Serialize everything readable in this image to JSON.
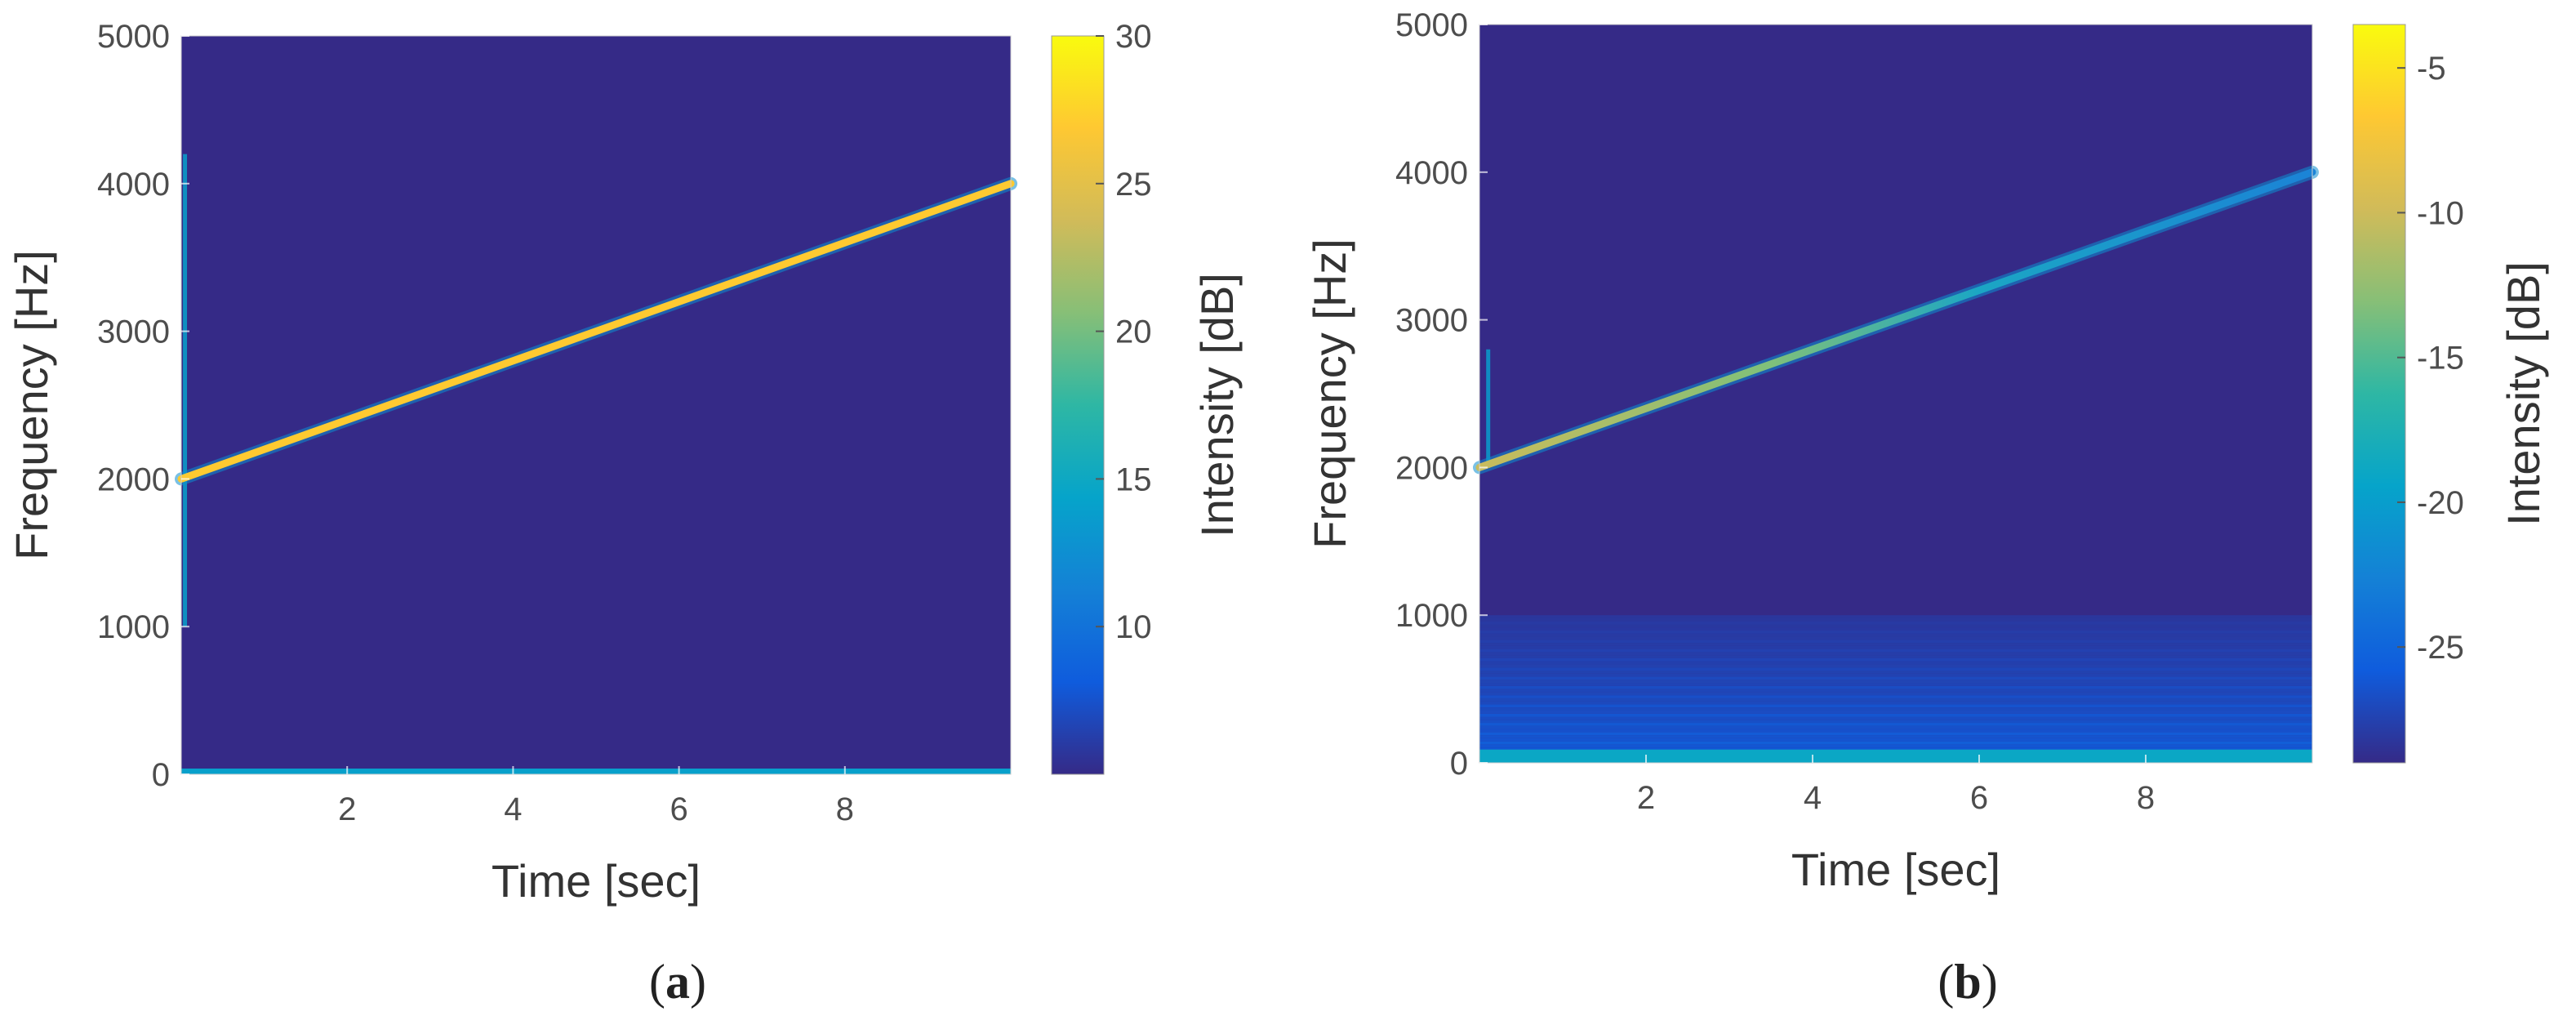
{
  "chart_data": [
    {
      "type": "heatmap",
      "panel_label": "a",
      "xlabel": "Time [sec]",
      "ylabel": "Frequency [Hz]",
      "colorbar_label": "Intensity [dB]",
      "xlim": [
        0,
        10
      ],
      "ylim": [
        0,
        5000
      ],
      "xticks": [
        2,
        4,
        6,
        8
      ],
      "yticks": [
        0,
        1000,
        2000,
        3000,
        4000,
        5000
      ],
      "clim": [
        5,
        30
      ],
      "colorbar_ticks": [
        10,
        15,
        20,
        25,
        30
      ],
      "background_level_db": 5,
      "features": {
        "chirp": {
          "t": [
            0,
            10
          ],
          "freq": [
            2000,
            4000
          ],
          "level_db": 27
        },
        "dc_line": {
          "freq": 0,
          "level_db": 14
        },
        "onset_transient": {
          "t": 0.04,
          "freq_range": [
            1000,
            4200
          ],
          "level_db": 14
        }
      }
    },
    {
      "type": "heatmap",
      "panel_label": "b",
      "xlabel": "Time [sec]",
      "ylabel": "Frequency [Hz]",
      "colorbar_label": "Intensity [dB]",
      "xlim": [
        0,
        10
      ],
      "ylim": [
        0,
        5000
      ],
      "xticks": [
        2,
        4,
        6,
        8
      ],
      "yticks": [
        0,
        1000,
        2000,
        3000,
        4000,
        5000
      ],
      "clim": [
        -29,
        -3.5
      ],
      "colorbar_ticks": [
        -25,
        -20,
        -15,
        -10,
        -5
      ],
      "background_level_db": -28.5,
      "features": {
        "chirp": {
          "t": [
            0,
            10
          ],
          "freq": [
            2000,
            4000
          ],
          "level_db_start": -8,
          "level_db_end": -20
        },
        "low_freq_noise": {
          "freq_range": [
            0,
            1000
          ],
          "level_db": -25
        },
        "onset_transient": {
          "t": 0.1,
          "freq_range": [
            2000,
            2800
          ],
          "level_db": -20
        }
      }
    }
  ]
}
